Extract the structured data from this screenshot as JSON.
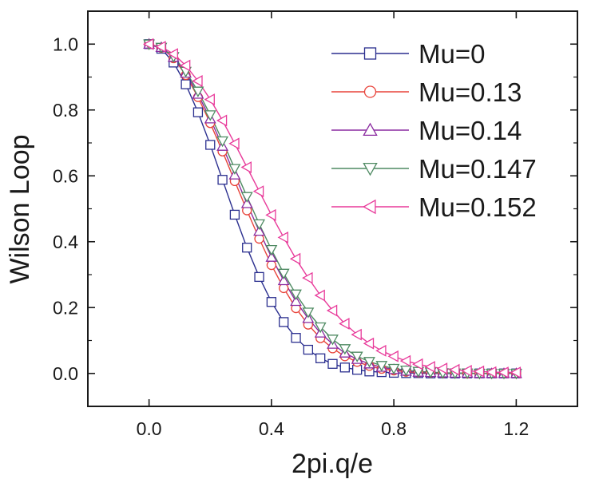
{
  "chart_data": {
    "type": "line",
    "title": "",
    "xlabel": "2pi.q/e",
    "ylabel": "Wilson Loop",
    "xlim": [
      -0.2,
      1.4
    ],
    "ylim": [
      -0.1,
      1.1
    ],
    "xticks": [
      0.0,
      0.4,
      0.8,
      1.2
    ],
    "xtick_labels": [
      "0.0",
      "0.4",
      "0.8",
      "1.2"
    ],
    "yticks": [
      0.0,
      0.2,
      0.4,
      0.6,
      0.8,
      1.0
    ],
    "ytick_labels": [
      "0.0",
      "0.2",
      "0.4",
      "0.6",
      "0.8",
      "1.0"
    ],
    "grid": false,
    "legend_position": "top-right",
    "x": [
      0.0,
      0.04,
      0.08,
      0.12,
      0.16,
      0.2,
      0.24,
      0.28,
      0.32,
      0.36,
      0.4,
      0.44,
      0.48,
      0.52,
      0.56,
      0.6,
      0.64,
      0.68,
      0.72,
      0.76,
      0.8,
      0.84,
      0.88,
      0.92,
      0.96,
      1.0,
      1.04,
      1.08,
      1.12,
      1.16,
      1.2
    ],
    "series": [
      {
        "name": "Mu=0",
        "color": "#2b2f8f",
        "marker": "square",
        "values": [
          1.0,
          0.986,
          0.944,
          0.878,
          0.793,
          0.694,
          0.588,
          0.482,
          0.382,
          0.293,
          0.217,
          0.156,
          0.108,
          0.072,
          0.046,
          0.029,
          0.018,
          0.011,
          0.006,
          0.004,
          0.002,
          0.001,
          0.001,
          0.0,
          0.0,
          0.0,
          0.0,
          0.0,
          0.0,
          0.0,
          0.0
        ]
      },
      {
        "name": "Mu=0.13",
        "color": "#e8433a",
        "marker": "circle",
        "values": [
          1.0,
          0.989,
          0.957,
          0.906,
          0.839,
          0.76,
          0.674,
          0.584,
          0.495,
          0.409,
          0.329,
          0.259,
          0.198,
          0.148,
          0.107,
          0.076,
          0.052,
          0.035,
          0.023,
          0.014,
          0.009,
          0.005,
          0.003,
          0.002,
          0.001,
          0.001,
          0.0,
          0.0,
          0.0,
          0.0,
          0.0
        ]
      },
      {
        "name": "Mu=0.14",
        "color": "#8a2aa0",
        "marker": "triangle-up",
        "values": [
          1.0,
          0.99,
          0.96,
          0.912,
          0.848,
          0.773,
          0.69,
          0.603,
          0.516,
          0.432,
          0.353,
          0.282,
          0.219,
          0.167,
          0.123,
          0.089,
          0.062,
          0.043,
          0.029,
          0.019,
          0.012,
          0.007,
          0.004,
          0.003,
          0.002,
          0.001,
          0.001,
          0.0,
          0.0,
          0.0,
          0.0
        ]
      },
      {
        "name": "Mu=0.147",
        "color": "#4e8a62",
        "marker": "triangle-down",
        "values": [
          1.0,
          0.99,
          0.962,
          0.917,
          0.857,
          0.785,
          0.706,
          0.622,
          0.537,
          0.454,
          0.376,
          0.304,
          0.241,
          0.186,
          0.141,
          0.104,
          0.075,
          0.052,
          0.036,
          0.024,
          0.015,
          0.01,
          0.006,
          0.004,
          0.002,
          0.001,
          0.001,
          0.0,
          0.0,
          0.0,
          0.0
        ]
      },
      {
        "name": "Mu=0.152",
        "color": "#e83a9a",
        "marker": "triangle-left",
        "values": [
          1.0,
          0.992,
          0.97,
          0.935,
          0.888,
          0.832,
          0.768,
          0.698,
          0.626,
          0.553,
          0.481,
          0.413,
          0.348,
          0.29,
          0.237,
          0.191,
          0.151,
          0.118,
          0.091,
          0.069,
          0.052,
          0.038,
          0.028,
          0.02,
          0.015,
          0.011,
          0.008,
          0.006,
          0.004,
          0.003,
          0.003
        ]
      }
    ]
  }
}
